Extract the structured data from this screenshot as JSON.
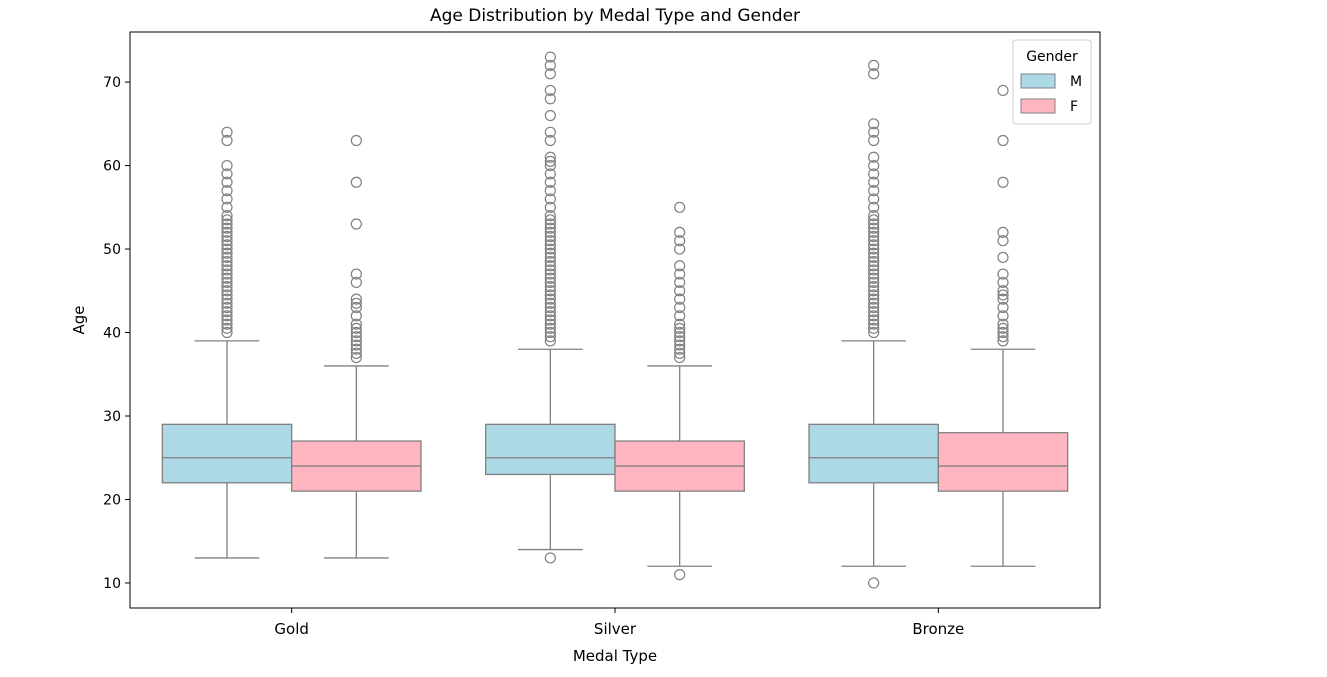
{
  "chart_data": {
    "type": "box",
    "title": "Age Distribution by Medal Type and Gender",
    "xlabel": "Medal Type",
    "ylabel": "Age",
    "categories": [
      "Gold",
      "Silver",
      "Bronze"
    ],
    "ylim": [
      7,
      76
    ],
    "yticks": [
      10,
      20,
      30,
      40,
      50,
      60,
      70
    ],
    "grid": false,
    "legend": {
      "title": "Gender",
      "placement": "top-right"
    },
    "series": [
      {
        "name": "M",
        "color": "#add8e6",
        "boxes": [
          {
            "whisker_low": 13,
            "q1": 22,
            "median": 25,
            "q3": 29,
            "whisker_high": 39,
            "outliers": [
              40,
              40.5,
              41,
              41.5,
              42,
              42.5,
              43,
              43.5,
              44,
              44.5,
              45,
              45.5,
              46,
              46.5,
              47,
              47.5,
              48,
              48.5,
              49,
              49.5,
              50,
              50.5,
              51,
              51.5,
              52,
              52.5,
              53,
              53.5,
              54,
              55,
              56,
              57,
              58,
              59,
              60,
              63,
              64
            ]
          },
          {
            "whisker_low": 14,
            "q1": 23,
            "median": 25,
            "q3": 29,
            "whisker_high": 38,
            "outliers": [
              13,
              39,
              39.5,
              40,
              40.5,
              41,
              41.5,
              42,
              42.5,
              43,
              43.5,
              44,
              44.5,
              45,
              45.5,
              46,
              46.5,
              47,
              47.5,
              48,
              48.5,
              49,
              49.5,
              50,
              50.5,
              51,
              51.5,
              52,
              52.5,
              53,
              53.5,
              54,
              55,
              56,
              57,
              58,
              59,
              60,
              60.5,
              61,
              63,
              64,
              66,
              68,
              69,
              71,
              72,
              73
            ]
          },
          {
            "whisker_low": 12,
            "q1": 22,
            "median": 25,
            "q3": 29,
            "whisker_high": 39,
            "outliers": [
              10,
              40,
              40.5,
              41,
              41.5,
              42,
              42.5,
              43,
              43.5,
              44,
              44.5,
              45,
              45.5,
              46,
              46.5,
              47,
              47.5,
              48,
              48.5,
              49,
              49.5,
              50,
              50.5,
              51,
              51.5,
              52,
              52.5,
              53,
              53.5,
              54,
              55,
              56,
              57,
              58,
              59,
              60,
              61,
              63,
              64,
              65,
              71,
              72
            ]
          }
        ]
      },
      {
        "name": "F",
        "color": "#ffb6c1",
        "boxes": [
          {
            "whisker_low": 13,
            "q1": 21,
            "median": 24,
            "q3": 27,
            "whisker_high": 36,
            "outliers": [
              37,
              37.5,
              38,
              38.5,
              39,
              39.5,
              40,
              40.5,
              41,
              42,
              43,
              43.5,
              44,
              46,
              47,
              53,
              58,
              63
            ]
          },
          {
            "whisker_low": 12,
            "q1": 21,
            "median": 24,
            "q3": 27,
            "whisker_high": 36,
            "outliers": [
              11,
              37,
              37.5,
              38,
              38.5,
              39,
              39.5,
              40,
              40.5,
              41,
              42,
              43,
              44,
              45,
              46,
              47,
              48,
              50,
              51,
              52,
              55
            ]
          },
          {
            "whisker_low": 12,
            "q1": 21,
            "median": 24,
            "q3": 28,
            "whisker_high": 38,
            "outliers": [
              39,
              39.5,
              40,
              40.5,
              41,
              42,
              43,
              44,
              44.5,
              45,
              46,
              47,
              49,
              51,
              52,
              58,
              63,
              69
            ]
          }
        ]
      }
    ]
  }
}
